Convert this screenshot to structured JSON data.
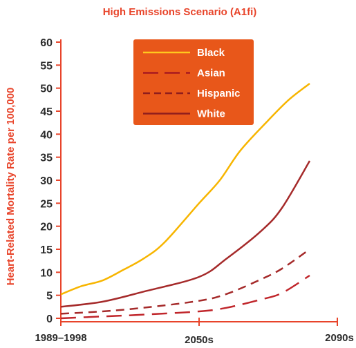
{
  "chart_data": {
    "type": "line",
    "title": "High Emissions Scenario (A1fi)",
    "ylabel": "Heart-Related Mortality Rate per 100,000",
    "xlabel": "",
    "categories": [
      "1989–1998",
      "2050s",
      "2090s"
    ],
    "ylim": [
      0,
      60
    ],
    "yticks": [
      0,
      5,
      10,
      15,
      20,
      25,
      30,
      35,
      40,
      45,
      50,
      55,
      60
    ],
    "grid": false,
    "legend_position": "top-center",
    "series": [
      {
        "name": "Black",
        "color": "#f7b500",
        "style": "solid",
        "points": [
          [
            0,
            5.2
          ],
          [
            0.15,
            7
          ],
          [
            0.3,
            8.2
          ],
          [
            0.45,
            10.5
          ],
          [
            0.6,
            13
          ],
          [
            0.75,
            16.5
          ],
          [
            1,
            25
          ],
          [
            1.15,
            30
          ],
          [
            1.3,
            36.5
          ],
          [
            1.5,
            43
          ],
          [
            1.65,
            47.5
          ],
          [
            1.8,
            51
          ]
        ]
      },
      {
        "name": "Asian",
        "color": "#c0262b",
        "style": "dashed",
        "points": [
          [
            0,
            0
          ],
          [
            0.3,
            0.4
          ],
          [
            0.6,
            0.8
          ],
          [
            1,
            1.5
          ],
          [
            1.2,
            2.3
          ],
          [
            1.45,
            4.1
          ],
          [
            1.6,
            5.5
          ],
          [
            1.8,
            9.3
          ]
        ]
      },
      {
        "name": "Hispanic",
        "color": "#a52a2a",
        "style": "dashed",
        "points": [
          [
            0,
            1
          ],
          [
            0.3,
            1.5
          ],
          [
            0.6,
            2.3
          ],
          [
            1,
            3.8
          ],
          [
            1.2,
            5.3
          ],
          [
            1.45,
            8.5
          ],
          [
            1.6,
            10.8
          ],
          [
            1.8,
            15
          ]
        ]
      },
      {
        "name": "White",
        "color": "#a52a2a",
        "style": "solid",
        "points": [
          [
            0,
            2.5
          ],
          [
            0.3,
            3.6
          ],
          [
            0.6,
            5.8
          ],
          [
            1,
            9
          ],
          [
            1.2,
            13
          ],
          [
            1.45,
            19
          ],
          [
            1.6,
            24
          ],
          [
            1.8,
            34.2
          ]
        ]
      }
    ]
  },
  "colors": {
    "title": "#e8442a",
    "axis": "#e8442a",
    "tick_label": "#2b2b2b",
    "ylabel": "#e8442a",
    "legend_bg": "#e8571a",
    "legend_text": "#ffffff"
  }
}
